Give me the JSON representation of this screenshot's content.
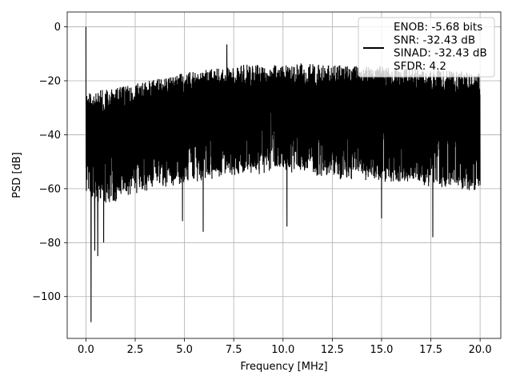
{
  "chart_data": {
    "type": "line",
    "xlabel": "Frequency [MHz]",
    "ylabel": "PSD [dB]",
    "xlim": [
      -0.95,
      21.05
    ],
    "ylim": [
      -115.5,
      5.5
    ],
    "grid": true,
    "legend_position": "top-right",
    "x_ticks": [
      0,
      2.5,
      5,
      7.5,
      10,
      12.5,
      15,
      17.5,
      20
    ],
    "x_tick_labels": [
      "0.0",
      "2.5",
      "5.0",
      "7.5",
      "10.0",
      "12.5",
      "15.0",
      "17.5",
      "20.0"
    ],
    "y_ticks": [
      0,
      -20,
      -40,
      -60,
      -80,
      -100
    ],
    "y_tick_labels": [
      "0",
      "−20",
      "−40",
      "−60",
      "−80",
      "−100"
    ],
    "line_color": "#000000",
    "series": [
      {
        "name": "ENOB: -5.68 bits\nSNR: -32.43 dB\nSINAD: -32.43 dB\nSFDR: 4.2",
        "x_range": [
          0,
          20
        ],
        "upper_envelope": [
          [
            0,
            -24
          ],
          [
            1,
            -23
          ],
          [
            2,
            -22
          ],
          [
            3,
            -20
          ],
          [
            4,
            -18.5
          ],
          [
            5,
            -17
          ],
          [
            6,
            -16
          ],
          [
            7,
            -15
          ],
          [
            8,
            -14
          ],
          [
            9,
            -14
          ],
          [
            10,
            -13.5
          ],
          [
            11,
            -13.5
          ],
          [
            12,
            -14
          ],
          [
            13,
            -14
          ],
          [
            14,
            -14.5
          ],
          [
            15,
            -14.5
          ],
          [
            16,
            -15
          ],
          [
            17,
            -15.5
          ],
          [
            18,
            -16
          ],
          [
            19,
            -16.5
          ],
          [
            20,
            -17
          ]
        ],
        "lower_envelope": [
          [
            0,
            -65
          ],
          [
            1,
            -66
          ],
          [
            2,
            -64
          ],
          [
            3,
            -61
          ],
          [
            4,
            -60
          ],
          [
            5,
            -58
          ],
          [
            6,
            -57
          ],
          [
            7,
            -56
          ],
          [
            8,
            -55
          ],
          [
            9,
            -55
          ],
          [
            10,
            -55
          ],
          [
            11,
            -55
          ],
          [
            12,
            -56
          ],
          [
            13,
            -57
          ],
          [
            14,
            -57
          ],
          [
            15,
            -58
          ],
          [
            16,
            -58
          ],
          [
            17,
            -59
          ],
          [
            18,
            -60
          ],
          [
            19,
            -61
          ],
          [
            20,
            -62
          ]
        ],
        "peaks": [
          [
            0.0,
            0.0
          ],
          [
            7.15,
            -6.5
          ]
        ],
        "dips": [
          [
            0.26,
            -109.5
          ],
          [
            0.45,
            -83
          ],
          [
            0.6,
            -85
          ],
          [
            0.9,
            -80
          ],
          [
            5.95,
            -76
          ],
          [
            17.6,
            -78
          ],
          [
            15.0,
            -71
          ],
          [
            10.2,
            -74
          ],
          [
            4.9,
            -72
          ]
        ]
      }
    ]
  }
}
